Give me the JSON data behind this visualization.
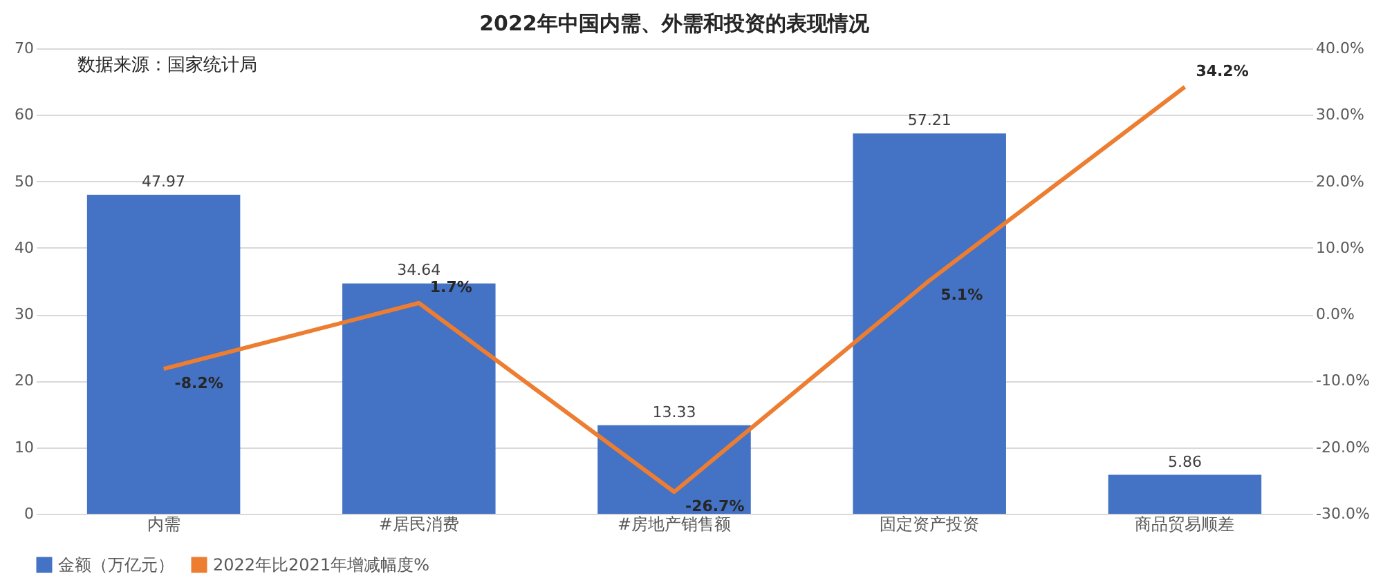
{
  "chart_data": {
    "type": "bar",
    "title": "2022年中国内需、外需和投资的表现情况",
    "categories": [
      "内需",
      "#居民消费",
      "#房地产销售额",
      "固定资产投资",
      "商品贸易顺差"
    ],
    "series": [
      {
        "name": "金额（万亿元）",
        "color": "#4472c4",
        "values": [
          47.97,
          34.64,
          13.33,
          57.21,
          5.86
        ],
        "value_labels": [
          "47.97",
          "34.64",
          "13.33",
          "57.21",
          "5.86"
        ]
      },
      {
        "name": "2022年比2021年增减幅度%",
        "type": "line",
        "axis": "y2",
        "color": "#ed7d31",
        "values": [
          -8.2,
          1.7,
          -26.7,
          5.1,
          34.2
        ],
        "value_labels": [
          "-8.2%",
          "1.7%",
          "-26.7%",
          "5.1%",
          "34.2%"
        ]
      }
    ],
    "ylim": [
      0,
      70
    ],
    "yticks": [
      0,
      10,
      20,
      30,
      40,
      50,
      60,
      70
    ],
    "y2lim": [
      -30,
      40
    ],
    "y2ticks": [
      {
        "value": -30,
        "label": "-30.0%"
      },
      {
        "value": -20,
        "label": "-20.0%"
      },
      {
        "value": -10,
        "label": "-10.0%"
      },
      {
        "value": 0,
        "label": "0.0%"
      },
      {
        "value": 10,
        "label": "10.0%"
      },
      {
        "value": 20,
        "label": "20.0%"
      },
      {
        "value": 30,
        "label": "30.0%"
      },
      {
        "value": 40,
        "label": "40.0%"
      }
    ],
    "grid": "y",
    "legend": "bottom",
    "marker": "none",
    "line_style": "solid",
    "annotations": [
      "数据来源：国家统计局"
    ]
  }
}
